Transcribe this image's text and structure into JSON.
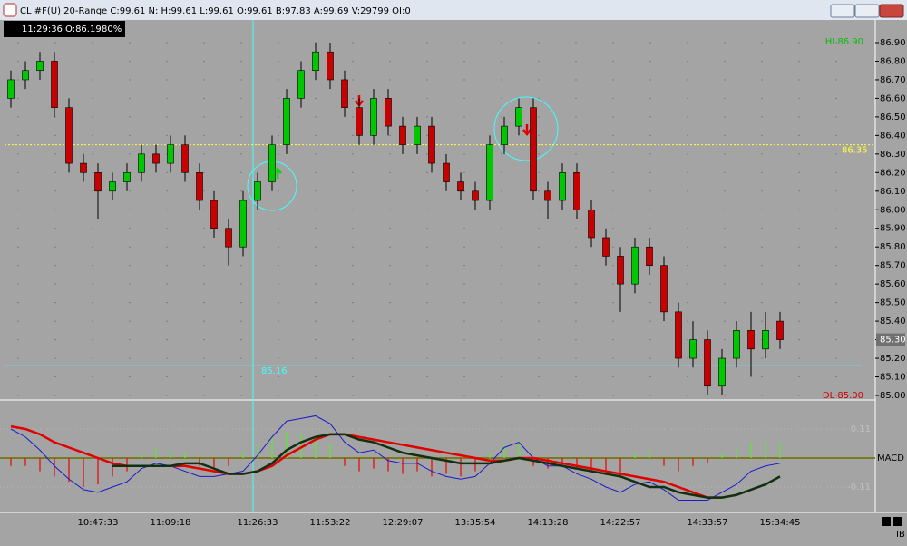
{
  "window": {
    "title": "CL #F(U) 20-Range C:99.61 N: H:99.61 L:99.61 O:99.61 B:97.83 A:99.69 V:29799 OI:0",
    "info": [
      "11:29:36",
      "O:86.19",
      "80%"
    ],
    "corner": "IB"
  },
  "chart_data": [
    {
      "type": "candlestick",
      "up_color": "#00c800",
      "down_color": "#c80000",
      "categories": [
        null,
        null,
        null,
        null,
        null,
        null,
        "10:47:33",
        null,
        null,
        null,
        null,
        "11:09:18",
        null,
        null,
        null,
        null,
        null,
        "11:26:33",
        null,
        null,
        null,
        null,
        "11:53:22",
        null,
        null,
        null,
        null,
        "12:29:07",
        null,
        null,
        null,
        null,
        "13:35:54",
        null,
        null,
        null,
        null,
        "14:13:28",
        null,
        null,
        null,
        null,
        "14:22:57",
        null,
        null,
        null,
        null,
        null,
        "14:33:57",
        null,
        null,
        null,
        null,
        "15:34:45"
      ],
      "open": [
        86.6,
        86.7,
        86.75,
        86.8,
        86.55,
        86.25,
        86.2,
        86.1,
        86.15,
        86.2,
        86.3,
        86.25,
        86.35,
        86.2,
        86.05,
        85.9,
        85.8,
        86.05,
        86.15,
        86.35,
        86.6,
        86.75,
        86.85,
        86.7,
        86.55,
        86.4,
        86.6,
        86.45,
        86.35,
        86.45,
        86.25,
        86.15,
        86.1,
        86.05,
        86.35,
        86.45,
        86.55,
        86.1,
        86.05,
        86.2,
        86.0,
        85.85,
        85.75,
        85.6,
        85.8,
        85.7,
        85.45,
        85.2,
        85.3,
        85.05,
        85.2,
        85.35,
        85.25,
        85.4
      ],
      "high": [
        86.75,
        86.8,
        86.85,
        86.85,
        86.6,
        86.3,
        86.25,
        86.2,
        86.25,
        86.35,
        86.35,
        86.4,
        86.4,
        86.25,
        86.1,
        85.95,
        86.1,
        86.2,
        86.4,
        86.65,
        86.8,
        86.9,
        86.9,
        86.75,
        86.6,
        86.65,
        86.65,
        86.5,
        86.5,
        86.5,
        86.3,
        86.2,
        86.15,
        86.4,
        86.5,
        86.6,
        86.6,
        86.15,
        86.25,
        86.25,
        86.05,
        85.9,
        85.8,
        85.85,
        85.85,
        85.75,
        85.5,
        85.4,
        85.35,
        85.25,
        85.4,
        85.45,
        85.45,
        85.45
      ],
      "low": [
        86.55,
        86.65,
        86.7,
        86.5,
        86.2,
        86.15,
        85.95,
        86.05,
        86.1,
        86.15,
        86.2,
        86.2,
        86.15,
        86.0,
        85.85,
        85.7,
        85.75,
        86.0,
        86.1,
        86.3,
        86.55,
        86.7,
        86.65,
        86.5,
        86.35,
        86.35,
        86.4,
        86.3,
        86.3,
        86.2,
        86.1,
        86.05,
        86.0,
        86.0,
        86.3,
        86.4,
        86.05,
        85.95,
        86.0,
        85.95,
        85.8,
        85.7,
        85.45,
        85.55,
        85.65,
        85.4,
        85.15,
        85.15,
        85.0,
        85.0,
        85.15,
        85.1,
        85.2,
        85.25
      ],
      "close": [
        86.7,
        86.75,
        86.8,
        86.55,
        86.25,
        86.2,
        86.1,
        86.15,
        86.2,
        86.3,
        86.25,
        86.35,
        86.2,
        86.05,
        85.9,
        85.8,
        86.05,
        86.15,
        86.35,
        86.6,
        86.75,
        86.85,
        86.7,
        86.55,
        86.4,
        86.6,
        86.45,
        86.35,
        86.45,
        86.25,
        86.15,
        86.1,
        86.05,
        86.35,
        86.45,
        86.55,
        86.1,
        86.05,
        86.2,
        86.0,
        85.85,
        85.75,
        85.6,
        85.8,
        85.7,
        85.45,
        85.2,
        85.3,
        85.05,
        85.2,
        85.35,
        85.25,
        85.35,
        85.3
      ],
      "ylim": [
        85.0,
        86.9
      ],
      "yticks": [
        {
          "value": 86.9,
          "label": "86.90"
        },
        {
          "value": 86.8,
          "label": "86.80"
        },
        {
          "value": 86.7,
          "label": "86.70"
        },
        {
          "value": 86.6,
          "label": "86.60"
        },
        {
          "value": 86.5,
          "label": "86.50"
        },
        {
          "value": 86.4,
          "label": "86.40"
        },
        {
          "value": 86.3,
          "label": "86.30"
        },
        {
          "value": 86.2,
          "label": "86.20"
        },
        {
          "value": 86.1,
          "label": "86.10"
        },
        {
          "value": 86.0,
          "label": "86.00"
        },
        {
          "value": 85.9,
          "label": "85.90"
        },
        {
          "value": 85.8,
          "label": "85.80"
        },
        {
          "value": 85.7,
          "label": "85.70"
        },
        {
          "value": 85.6,
          "label": "85.60"
        },
        {
          "value": 85.5,
          "label": "85.50"
        },
        {
          "value": 85.4,
          "label": "85.40"
        },
        {
          "value": 85.3,
          "label": "85.30"
        },
        {
          "value": 85.2,
          "label": "85.20"
        },
        {
          "value": 85.1,
          "label": "85.10"
        },
        {
          "value": 85.0,
          "label": "85.00"
        }
      ],
      "last_price": {
        "value": 85.3,
        "label": "85.30"
      },
      "levels": [
        {
          "value": 86.35,
          "label": "86.35",
          "color": "#ffff40"
        },
        {
          "value": 85.16,
          "label": "85.16",
          "color": "#40ffff"
        }
      ],
      "extremes": [
        {
          "value": 86.9,
          "label": "HI 86.90",
          "color": "#00c000"
        },
        {
          "value": 85.0,
          "label": "DL 85.00",
          "color": "#d00000"
        }
      ]
    },
    {
      "type": "macd",
      "label": "MACD",
      "ylim": [
        -0.22,
        0.22
      ],
      "yticks": [
        0.11,
        -0.11
      ],
      "series": [
        {
          "name": "MACD",
          "color": "#1a1acc",
          "values": [
            0.11,
            0.08,
            0.03,
            -0.03,
            -0.08,
            -0.12,
            -0.13,
            -0.11,
            -0.09,
            -0.04,
            -0.02,
            -0.03,
            -0.05,
            -0.07,
            -0.07,
            -0.06,
            -0.05,
            0.01,
            0.08,
            0.14,
            0.15,
            0.16,
            0.13,
            0.06,
            0.02,
            0.03,
            -0.01,
            -0.02,
            -0.02,
            -0.05,
            -0.07,
            -0.08,
            -0.07,
            -0.02,
            0.04,
            0.06,
            0.0,
            -0.03,
            -0.03,
            -0.06,
            -0.08,
            -0.11,
            -0.13,
            -0.1,
            -0.09,
            -0.12,
            -0.16,
            -0.16,
            -0.16,
            -0.13,
            -0.1,
            -0.05,
            -0.03,
            -0.02
          ]
        },
        {
          "name": "Signal",
          "color": "#e00000",
          "values": [
            0.12,
            0.11,
            0.09,
            0.06,
            0.04,
            0.02,
            0.0,
            -0.02,
            -0.03,
            -0.03,
            -0.03,
            -0.03,
            -0.03,
            -0.04,
            -0.05,
            -0.06,
            -0.06,
            -0.05,
            -0.03,
            0.01,
            0.04,
            0.07,
            0.09,
            0.09,
            0.08,
            0.07,
            0.06,
            0.05,
            0.04,
            0.03,
            0.02,
            0.01,
            0.0,
            -0.01,
            -0.01,
            0.0,
            0.0,
            -0.01,
            -0.02,
            -0.03,
            -0.04,
            -0.05,
            -0.06,
            -0.07,
            -0.08,
            -0.09,
            -0.11,
            -0.13,
            -0.15,
            -0.15,
            null,
            null,
            null,
            null
          ]
        },
        {
          "name": "Average",
          "color": "#103010",
          "values": [
            null,
            null,
            null,
            null,
            null,
            null,
            null,
            -0.03,
            -0.03,
            -0.03,
            -0.03,
            -0.03,
            -0.02,
            -0.02,
            -0.04,
            -0.06,
            -0.06,
            -0.05,
            -0.02,
            0.03,
            0.06,
            0.08,
            0.09,
            0.09,
            0.07,
            0.06,
            0.04,
            0.02,
            0.01,
            0.0,
            -0.01,
            -0.02,
            -0.02,
            -0.02,
            -0.01,
            0.0,
            -0.01,
            -0.02,
            -0.03,
            -0.04,
            -0.05,
            -0.06,
            -0.07,
            -0.09,
            -0.11,
            -0.11,
            -0.13,
            -0.14,
            -0.15,
            -0.15,
            -0.14,
            -0.12,
            -0.1,
            -0.07
          ]
        }
      ],
      "histogram": {
        "up_color": "#66dd44",
        "down_color": "#dd2222",
        "values": [
          -0.03,
          -0.03,
          -0.05,
          -0.07,
          -0.09,
          -0.11,
          -0.1,
          -0.07,
          -0.05,
          0.02,
          0.04,
          0.03,
          0.02,
          -0.03,
          -0.04,
          -0.03,
          0.02,
          0.05,
          0.08,
          0.1,
          0.09,
          0.08,
          0.05,
          -0.03,
          -0.05,
          -0.04,
          -0.05,
          -0.06,
          -0.05,
          -0.07,
          -0.06,
          -0.07,
          -0.05,
          0.02,
          0.05,
          0.06,
          -0.03,
          -0.04,
          -0.03,
          -0.04,
          -0.05,
          -0.06,
          -0.07,
          0.02,
          0.03,
          -0.03,
          -0.05,
          -0.03,
          -0.02,
          0.02,
          0.04,
          0.06,
          0.07,
          0.06
        ]
      }
    }
  ]
}
